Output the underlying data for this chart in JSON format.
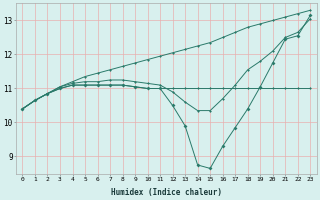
{
  "xlabel": "Humidex (Indice chaleur)",
  "x": [
    0,
    1,
    2,
    3,
    4,
    5,
    6,
    7,
    8,
    9,
    10,
    11,
    12,
    13,
    14,
    15,
    16,
    17,
    18,
    19,
    20,
    21,
    22,
    23
  ],
  "line1": [
    10.4,
    10.65,
    10.85,
    11.0,
    11.1,
    11.1,
    11.1,
    11.1,
    11.1,
    11.05,
    11.0,
    11.0,
    11.0,
    11.0,
    11.0,
    11.0,
    11.0,
    11.0,
    11.0,
    11.0,
    11.0,
    11.0,
    11.0,
    11.0
  ],
  "line2": [
    10.4,
    10.65,
    10.85,
    11.0,
    11.1,
    11.1,
    11.1,
    11.1,
    11.1,
    11.05,
    11.0,
    11.0,
    10.5,
    9.9,
    8.75,
    8.65,
    9.3,
    9.85,
    10.4,
    11.05,
    11.75,
    12.45,
    12.55,
    13.15
  ],
  "line3": [
    10.4,
    10.65,
    10.85,
    11.05,
    11.15,
    11.2,
    11.2,
    11.25,
    11.25,
    11.2,
    11.15,
    11.1,
    10.9,
    10.6,
    10.35,
    10.35,
    10.7,
    11.1,
    11.55,
    11.8,
    12.1,
    12.5,
    12.65,
    13.05
  ],
  "line4": [
    10.4,
    10.65,
    10.85,
    11.05,
    11.2,
    11.35,
    11.45,
    11.55,
    11.65,
    11.75,
    11.85,
    11.95,
    12.05,
    12.15,
    12.25,
    12.35,
    12.5,
    12.65,
    12.8,
    12.9,
    13.0,
    13.1,
    13.2,
    13.3
  ],
  "ylim": [
    8.5,
    13.5
  ],
  "yticks": [
    9,
    10,
    11,
    12,
    13
  ],
  "xticks": [
    0,
    1,
    2,
    3,
    4,
    5,
    6,
    7,
    8,
    9,
    10,
    11,
    12,
    13,
    14,
    15,
    16,
    17,
    18,
    19,
    20,
    21,
    22,
    23
  ],
  "line_color": "#2a7a6a",
  "bg_color": "#d8f0ee",
  "grid_color": "#e8b0b0"
}
